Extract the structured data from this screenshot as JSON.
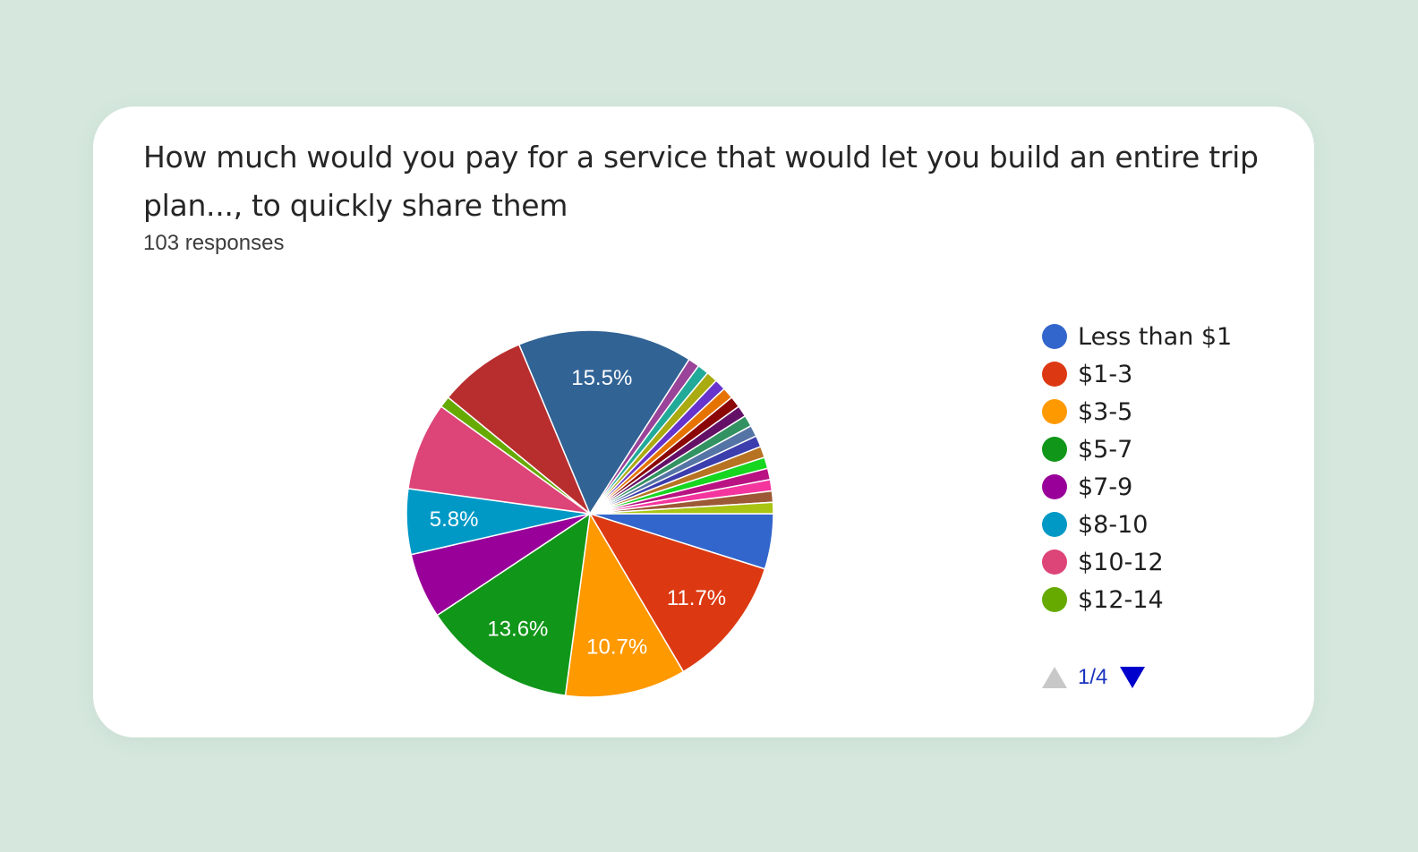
{
  "card": {
    "question": "How much would you pay for a service that would let you build an entire trip plan..., to quickly share them",
    "responses": "103 responses"
  },
  "chart_data": {
    "type": "pie",
    "title": "How much would you pay for a service that would let you build an entire trip plan..., to quickly share them",
    "total_responses": 103,
    "start": "3 o'clock, clockwise",
    "slices": [
      {
        "label": "Less than $1",
        "value": 4.9,
        "color": "#3366cc"
      },
      {
        "label": "$1-3",
        "value": 11.7,
        "color": "#dc3912",
        "data_label": "11.7%"
      },
      {
        "label": "$3-5",
        "value": 10.7,
        "color": "#ff9900",
        "data_label": "10.7%"
      },
      {
        "label": "$5-7",
        "value": 13.6,
        "color": "#109618",
        "data_label": "13.6%"
      },
      {
        "label": "$7-9",
        "value": 5.8,
        "color": "#990099"
      },
      {
        "label": "$8-10",
        "value": 5.8,
        "color": "#0099c6",
        "data_label": "5.8%"
      },
      {
        "label": "$10-12",
        "value": 7.8,
        "color": "#dd4477"
      },
      {
        "label": "$12-14",
        "value": 1.0,
        "color": "#66aa00"
      },
      {
        "label": "",
        "value": 7.8,
        "color": "#b82e2e"
      },
      {
        "label": "",
        "value": 15.5,
        "color": "#316395",
        "data_label": "15.5%"
      },
      {
        "label": "",
        "value": 1.0,
        "color": "#994499"
      },
      {
        "label": "",
        "value": 1.0,
        "color": "#22aa99"
      },
      {
        "label": "",
        "value": 1.0,
        "color": "#aaaa11"
      },
      {
        "label": "",
        "value": 1.0,
        "color": "#6633cc"
      },
      {
        "label": "",
        "value": 1.0,
        "color": "#e67300"
      },
      {
        "label": "",
        "value": 1.0,
        "color": "#8b0707"
      },
      {
        "label": "",
        "value": 1.0,
        "color": "#651067"
      },
      {
        "label": "",
        "value": 1.0,
        "color": "#329262"
      },
      {
        "label": "",
        "value": 1.0,
        "color": "#5574a6"
      },
      {
        "label": "",
        "value": 1.0,
        "color": "#3b3eac"
      },
      {
        "label": "",
        "value": 1.0,
        "color": "#b77322"
      },
      {
        "label": "",
        "value": 1.0,
        "color": "#16d620"
      },
      {
        "label": "",
        "value": 1.0,
        "color": "#b91383"
      },
      {
        "label": "",
        "value": 1.0,
        "color": "#f4359e"
      },
      {
        "label": "",
        "value": 1.0,
        "color": "#9c5935"
      },
      {
        "label": "",
        "value": 1.0,
        "color": "#a9c413"
      }
    ],
    "legend": {
      "placement": "right",
      "items": [
        {
          "label": "Less than $1",
          "color": "#3366cc"
        },
        {
          "label": "$1-3",
          "color": "#dc3912"
        },
        {
          "label": "$3-5",
          "color": "#ff9900"
        },
        {
          "label": "$5-7",
          "color": "#109618"
        },
        {
          "label": "$7-9",
          "color": "#990099"
        },
        {
          "label": "$8-10",
          "color": "#0099c6"
        },
        {
          "label": "$10-12",
          "color": "#dd4477"
        },
        {
          "label": "$12-14",
          "color": "#66aa00"
        }
      ]
    }
  },
  "pager": {
    "text": "1/4",
    "up_icon": "triangle-up-icon",
    "down_icon": "triangle-down-icon",
    "up_color": "#c8c8c8",
    "down_color": "#0000cc"
  }
}
